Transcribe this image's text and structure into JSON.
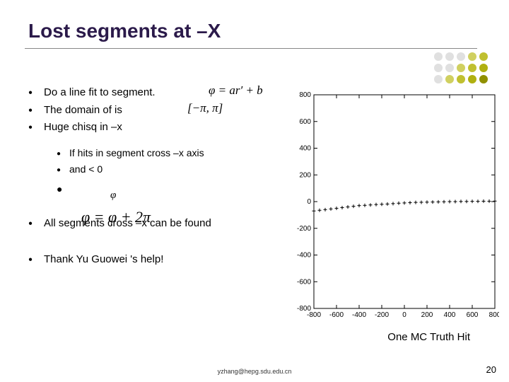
{
  "title": "Lost segments at –X",
  "bullets": {
    "b1": "Do a line fit to segment.",
    "b2": "The domain of        is",
    "b3": "Huge chisq in –x",
    "s1": "If hits in segment cross –x axis",
    "s2": "and         < 0",
    "b4": "All segments cross –x can be found",
    "b5": "Thank Yu Guowei 's help!"
  },
  "formulas": {
    "f1": "φ = ar′ + b",
    "f2": "[−π, π]",
    "f3": "φ",
    "f4": "φ = φ + 2π"
  },
  "dots": {
    "colors": [
      "#e0e0e0",
      "#e0e0e0",
      "#e0e0e0",
      "#d0d060",
      "#c0c030",
      "#e0e0e0",
      "#e0e0e0",
      "#d0d060",
      "#c0c030",
      "#b0b010",
      "#e0e0e0",
      "#d0d060",
      "#c0c030",
      "#b0b010",
      "#909000"
    ]
  },
  "chart": {
    "type": "scatter",
    "xlim": [
      -800,
      800
    ],
    "ylim": [
      -800,
      800
    ],
    "xticks": [
      -800,
      -600,
      -400,
      -200,
      0,
      200,
      400,
      600,
      800
    ],
    "yticks": [
      -800,
      -600,
      -400,
      -200,
      0,
      200,
      400,
      600,
      800
    ],
    "background": "#ffffff",
    "axis_color": "#000000",
    "tick_fontsize": 10,
    "marker": "+",
    "marker_color": "#000000",
    "marker_size": 5,
    "points_x": [
      -800,
      -750,
      -700,
      -650,
      -600,
      -550,
      -500,
      -450,
      -400,
      -350,
      -300,
      -250,
      -200,
      -150,
      -100,
      -50,
      0,
      50,
      100,
      150,
      200,
      250,
      300,
      350,
      400,
      450,
      500,
      550,
      600,
      650,
      700,
      750,
      800
    ],
    "points_y": [
      -70,
      -65,
      -60,
      -55,
      -50,
      -45,
      -40,
      -35,
      -30,
      -28,
      -25,
      -22,
      -20,
      -18,
      -15,
      -12,
      -10,
      -8,
      -6,
      -5,
      -4,
      -3,
      -2,
      -1,
      0,
      0,
      1,
      1,
      2,
      2,
      3,
      3,
      4
    ]
  },
  "caption": "One MC Truth Hit",
  "footer": "yzhang@hepg.sdu.edu.cn",
  "page": "20"
}
